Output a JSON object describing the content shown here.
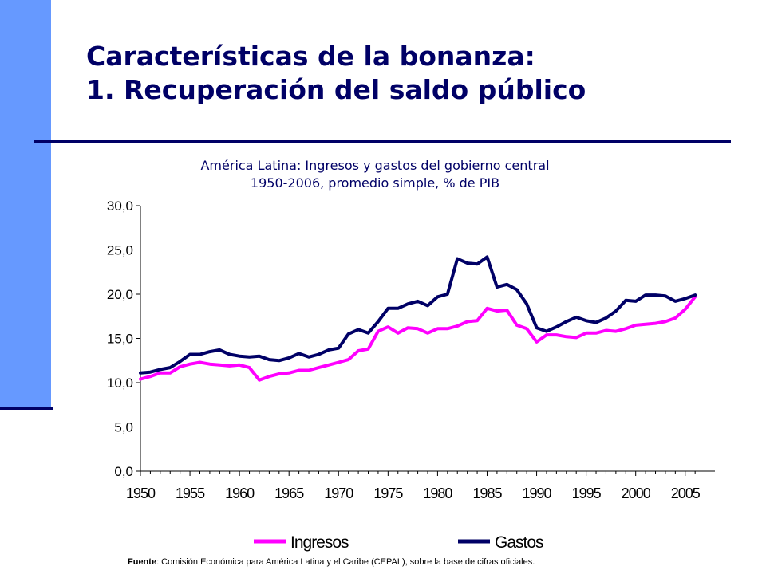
{
  "slide": {
    "title_line1": "Características de la bonanza:",
    "title_line2": "1. Recuperación del saldo público",
    "source_label": "Fuente",
    "source_text": ": Comisión Económica para América Latina y el Caribe (CEPAL), sobre la base de cifras oficiales."
  },
  "chart_data": {
    "type": "line",
    "title": "América Latina: Ingresos y gastos del gobierno central",
    "subtitle": "1950-2006, promedio simple, % de PIB",
    "x": [
      1950,
      1951,
      1952,
      1953,
      1954,
      1955,
      1956,
      1957,
      1958,
      1959,
      1960,
      1961,
      1962,
      1963,
      1964,
      1965,
      1966,
      1967,
      1968,
      1969,
      1970,
      1971,
      1972,
      1973,
      1974,
      1975,
      1976,
      1977,
      1978,
      1979,
      1980,
      1981,
      1982,
      1983,
      1984,
      1985,
      1986,
      1987,
      1988,
      1989,
      1990,
      1991,
      1992,
      1993,
      1994,
      1995,
      1996,
      1997,
      1998,
      1999,
      2000,
      2001,
      2002,
      2003,
      2004,
      2005,
      2006
    ],
    "xticks": [
      "1950",
      "1955",
      "1960",
      "1965",
      "1970",
      "1975",
      "1980",
      "1985",
      "1990",
      "1995",
      "2000",
      "2005"
    ],
    "yticks": [
      "0,0",
      "5,0",
      "10,0",
      "15,0",
      "20,0",
      "25,0",
      "30,0"
    ],
    "ylim": [
      0,
      30
    ],
    "xlim": [
      1950,
      2008
    ],
    "grid": false,
    "legend_position": "bottom",
    "series": [
      {
        "name": "Ingresos",
        "color": "#ff00ff",
        "values": [
          10.4,
          10.7,
          11.1,
          11.1,
          11.8,
          12.1,
          12.3,
          12.1,
          12.0,
          11.9,
          12.0,
          11.7,
          10.3,
          10.7,
          11.0,
          11.1,
          11.4,
          11.4,
          11.7,
          12.0,
          12.3,
          12.6,
          13.6,
          13.8,
          15.8,
          16.3,
          15.6,
          16.2,
          16.1,
          15.6,
          16.1,
          16.1,
          16.4,
          16.9,
          17.0,
          18.4,
          18.1,
          18.2,
          16.5,
          16.1,
          14.6,
          15.4,
          15.4,
          15.2,
          15.1,
          15.6,
          15.6,
          15.9,
          15.8,
          16.1,
          16.5,
          16.6,
          16.7,
          16.9,
          17.3,
          18.3,
          19.7
        ]
      },
      {
        "name": "Gastos",
        "color": "#000066",
        "values": [
          11.1,
          11.2,
          11.5,
          11.7,
          12.4,
          13.2,
          13.2,
          13.5,
          13.7,
          13.2,
          13.0,
          12.9,
          13.0,
          12.6,
          12.5,
          12.8,
          13.3,
          12.9,
          13.2,
          13.7,
          13.9,
          15.5,
          16.0,
          15.6,
          16.9,
          18.4,
          18.4,
          18.9,
          19.2,
          18.7,
          19.7,
          20.0,
          24.0,
          23.5,
          23.4,
          24.2,
          20.8,
          21.1,
          20.5,
          18.9,
          16.2,
          15.8,
          16.3,
          16.9,
          17.4,
          17.0,
          16.8,
          17.3,
          18.1,
          19.3,
          19.2,
          19.9,
          19.9,
          19.8,
          19.2,
          19.5,
          19.9
        ]
      }
    ]
  }
}
